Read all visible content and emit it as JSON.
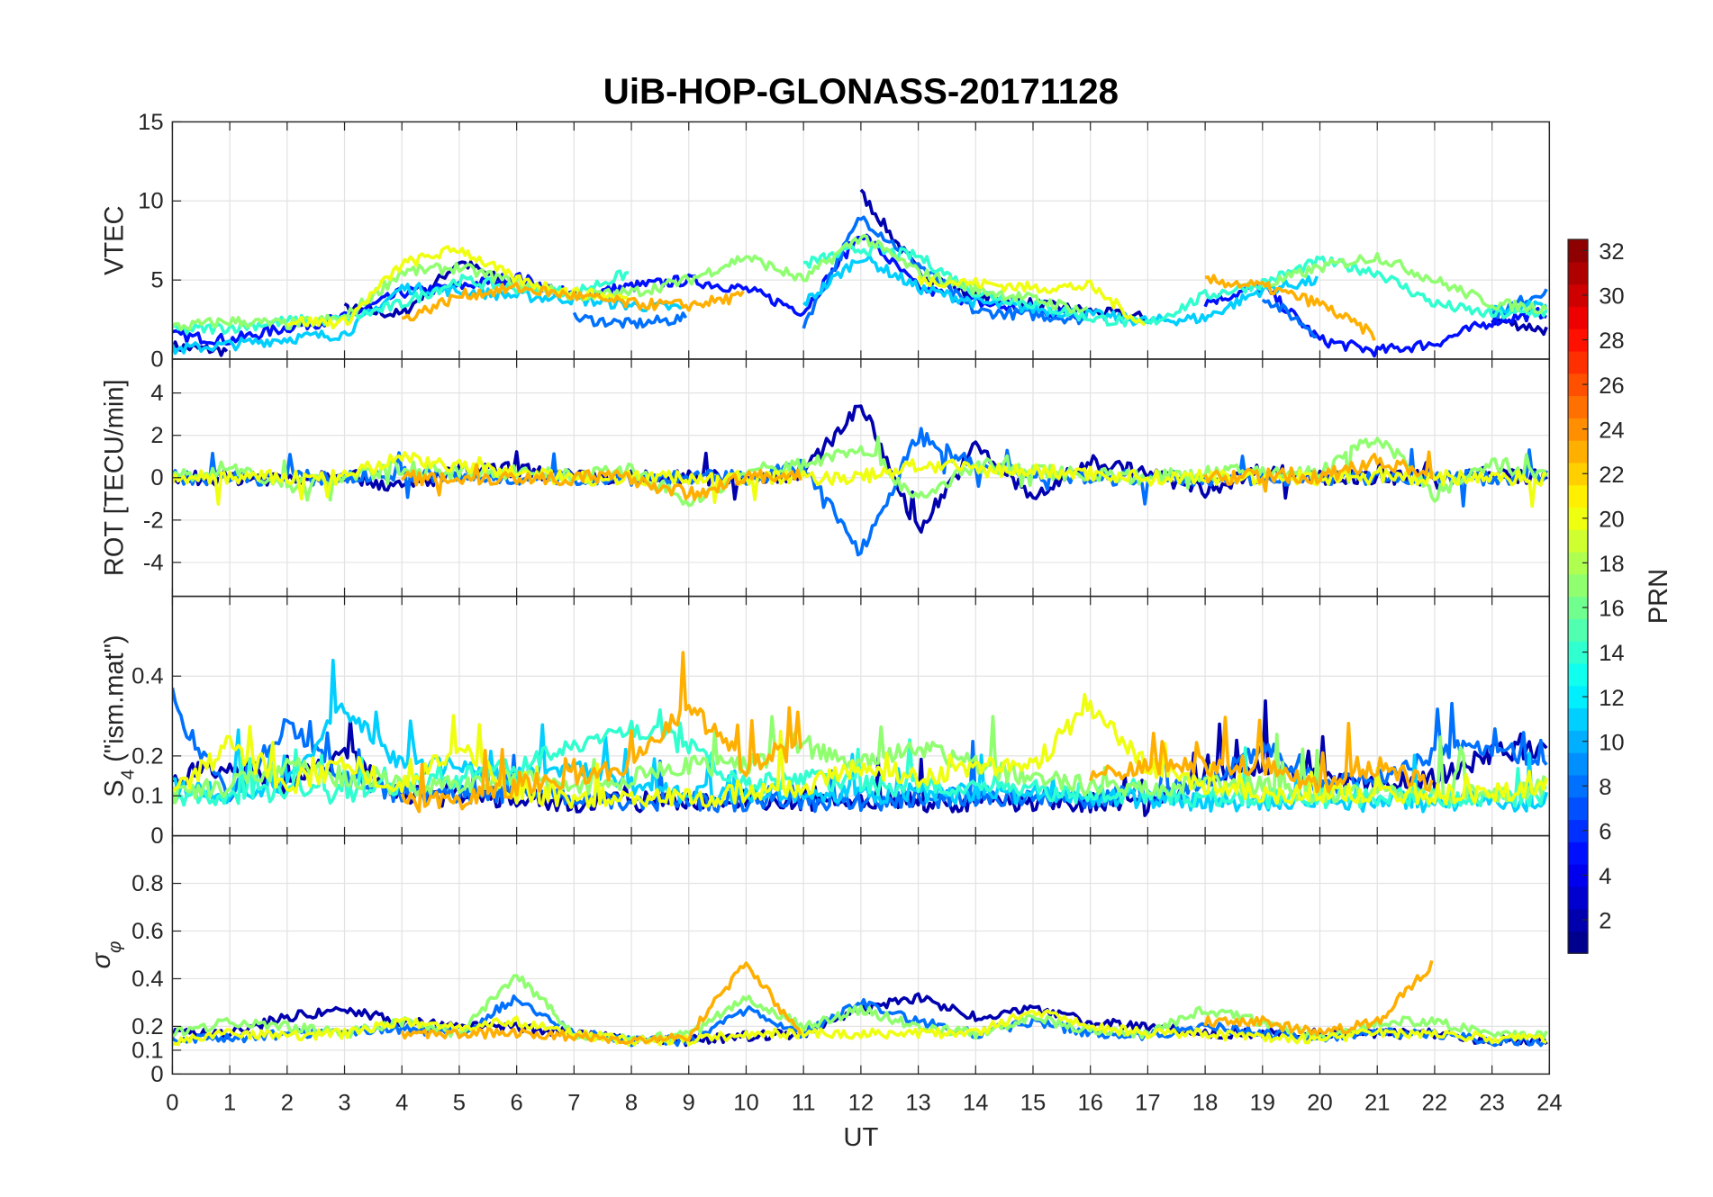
{
  "chart_data": {
    "type": "line",
    "title": "UiB-HOP-GLONASS-20171128",
    "xlabel": "UT",
    "xlim": [
      0,
      24
    ],
    "xticks": [
      0,
      1,
      2,
      3,
      4,
      5,
      6,
      7,
      8,
      9,
      10,
      11,
      12,
      13,
      14,
      15,
      16,
      17,
      18,
      19,
      20,
      21,
      22,
      23,
      24
    ],
    "x": [
      0,
      1,
      2,
      3,
      4,
      5,
      6,
      7,
      8,
      9,
      10,
      11,
      12,
      13,
      14,
      15,
      16,
      17,
      18,
      19,
      20,
      21,
      22,
      23,
      24
    ],
    "grid": true,
    "colorbar": {
      "label": "PRN",
      "range": [
        0.5,
        32.5
      ],
      "levels": 32,
      "colormap": "jet",
      "ticks": [
        2,
        4,
        6,
        8,
        10,
        12,
        14,
        16,
        18,
        20,
        22,
        24,
        26,
        28,
        30,
        32
      ]
    },
    "panels": [
      {
        "name": "vtec",
        "ylabel": "VTEC",
        "ylim": [
          0,
          15
        ],
        "yticks": [
          0,
          5,
          10,
          15
        ],
        "noise": 0.35,
        "series": [
          {
            "prn": 2,
            "values": [
              0.8,
              0.5,
              null,
              3.2,
              2.8,
              6.2,
              4.5,
              null,
              null,
              null,
              null,
              null,
              10.5,
              5.5,
              4.0,
              3.5,
              3.0,
              2.6,
              null,
              null,
              null,
              null,
              null,
              2.5,
              1.8
            ]
          },
          {
            "prn": 5,
            "values": [
              1.5,
              1.2,
              2.0,
              2.6,
              4.2,
              4.6,
              5.2,
              4.0,
              4.6,
              5.0,
              4.4,
              3.0,
              8.0,
              4.5,
              3.6,
              3.0,
              2.8,
              null,
              3.6,
              4.6,
              1.2,
              0.5,
              1.0,
              2.4,
              3.0
            ]
          },
          {
            "prn": 8,
            "values": [
              null,
              null,
              null,
              null,
              null,
              null,
              null,
              2.6,
              2.2,
              2.6,
              null,
              2.2,
              9.0,
              6.0,
              3.0,
              2.8,
              2.5,
              null,
              null,
              4.0,
              1.5,
              null,
              null,
              2.8,
              4.5
            ]
          },
          {
            "prn": 11,
            "values": [
              0.6,
              0.9,
              1.3,
              1.6,
              4.5,
              4.3,
              4.0,
              3.8,
              3.4,
              3.2,
              null,
              3.5,
              6.5,
              4.5,
              3.6,
              3.2,
              2.8,
              2.4,
              2.6,
              4.4,
              5.0,
              null,
              null,
              3.0,
              3.5
            ]
          },
          {
            "prn": 14,
            "values": [
              1.8,
              2.0,
              2.4,
              2.5,
              3.5,
              5.0,
              4.5,
              4.2,
              5.5,
              null,
              null,
              6.0,
              7.0,
              6.5,
              4.2,
              3.5,
              2.6,
              2.2,
              4.0,
              4.8,
              6.2,
              5.5,
              3.5,
              2.8,
              3.0
            ]
          },
          {
            "prn": 17,
            "values": [
              2.0,
              2.4,
              2.2,
              2.6,
              5.5,
              5.8,
              4.8,
              4.0,
              4.2,
              5.0,
              6.5,
              5.0,
              7.8,
              5.5,
              4.4,
              3.8,
              3.0,
              null,
              null,
              4.6,
              5.8,
              6.5,
              5.0,
              3.5,
              3.2
            ]
          },
          {
            "prn": 20,
            "values": [
              null,
              null,
              2.4,
              2.3,
              6.0,
              7.0,
              5.0,
              4.2,
              3.8,
              null,
              null,
              null,
              null,
              5.0,
              4.8,
              4.5,
              4.6,
              2.0,
              null,
              null,
              null,
              null,
              null,
              null,
              null
            ]
          },
          {
            "prn": 23,
            "values": [
              null,
              null,
              null,
              null,
              2.5,
              4.0,
              4.5,
              4.0,
              3.5,
              3.4,
              4.0,
              null,
              null,
              null,
              null,
              null,
              null,
              null,
              5.0,
              4.6,
              3.5,
              1.4,
              null,
              null,
              null
            ]
          }
        ]
      },
      {
        "name": "rot",
        "ylabel": "ROT [TECU/min]",
        "ylim": [
          -5.6,
          5.6
        ],
        "yticks": [
          -4,
          -2,
          0,
          2,
          4
        ],
        "noise": 0.35,
        "series": [
          {
            "prn": 2,
            "values": [
              0,
              0,
              0,
              0.2,
              -0.5,
              0.3,
              0.4,
              0,
              0,
              0,
              0,
              0.2,
              3.5,
              -2.5,
              1.5,
              -1.0,
              0.8,
              0.2,
              -0.6,
              0.4,
              0,
              0,
              0,
              0.2,
              0
            ]
          },
          {
            "prn": 8,
            "values": [
              0,
              0,
              0,
              0,
              0.2,
              0,
              0,
              0,
              0,
              0,
              0,
              0.5,
              -3.5,
              2.0,
              0.5,
              0.2,
              0,
              0,
              0,
              0,
              0,
              0,
              0,
              0,
              0
            ]
          },
          {
            "prn": 17,
            "values": [
              0,
              0.5,
              -0.4,
              0,
              0.5,
              0.2,
              0.3,
              0,
              0.4,
              -1.2,
              0.3,
              0.6,
              1.5,
              -1.0,
              0.6,
              0.3,
              0.2,
              0,
              0.2,
              0.3,
              0.2,
              2.0,
              -0.8,
              0.6,
              0
            ]
          },
          {
            "prn": 20,
            "values": [
              0,
              0,
              0,
              0,
              1.0,
              0.5,
              0.2,
              0,
              0,
              0,
              0,
              0,
              0,
              0.6,
              0.4,
              0.3,
              0.2,
              0,
              0,
              0,
              0,
              0,
              0,
              0,
              0
            ]
          },
          {
            "prn": 23,
            "values": [
              null,
              null,
              null,
              null,
              0,
              0,
              0,
              0,
              0,
              -0.8,
              0,
              0.1,
              null,
              null,
              null,
              null,
              null,
              null,
              0,
              0.1,
              0,
              0.8,
              0.2,
              null,
              null
            ]
          }
        ]
      },
      {
        "name": "s4",
        "ylabel": "S4 (\"ism.mat\")",
        "ylim": [
          0,
          0.6
        ],
        "yticks": [
          0,
          0.1,
          0.2,
          0.4
        ],
        "noise": 0.05,
        "series": [
          {
            "prn": 2,
            "values": [
              0.12,
              0.15,
              0.1,
              0.18,
              0.08,
              0.07,
              0.07,
              0.06,
              0.06,
              0.06,
              0.07,
              0.06,
              0.06,
              0.06,
              0.06,
              0.06,
              0.06,
              0.05,
              0.12,
              0.15,
              0.12,
              0.1,
              0.12,
              0.18,
              0.2
            ]
          },
          {
            "prn": 8,
            "values": [
              0.3,
              0.08,
              0.25,
              0.12,
              0.08,
              0.08,
              0.08,
              0.07,
              0.06,
              0.06,
              0.06,
              0.06,
              0.06,
              0.07,
              0.07,
              0.07,
              0.07,
              0.08,
              0.1,
              0.2,
              0.1,
              0.12,
              0.18,
              0.2,
              0.15
            ]
          },
          {
            "prn": 11,
            "values": [
              0.1,
              0.08,
              0.1,
              0.3,
              0.15,
              0.15,
              0.12,
              0.15,
              0.1,
              0.08,
              0.08,
              0.08,
              0.08,
              0.08,
              0.08,
              0.08,
              0.07,
              0.07,
              0.06,
              0.06,
              0.06,
              0.06,
              0.06,
              0.06,
              0.06
            ]
          },
          {
            "prn": 14,
            "values": [
              0.07,
              0.07,
              0.08,
              0.08,
              0.1,
              0.12,
              0.15,
              0.2,
              0.25,
              0.2,
              0.1,
              0.12,
              0.1,
              0.1,
              0.1,
              0.09,
              0.08,
              0.08,
              0.07,
              0.07,
              0.07,
              0.07,
              0.07,
              0.07,
              0.07
            ]
          },
          {
            "prn": 17,
            "values": [
              0.08,
              0.1,
              0.15,
              0.12,
              0.1,
              0.1,
              0.12,
              0.1,
              0.12,
              0.15,
              0.15,
              0.2,
              0.15,
              0.2,
              0.15,
              0.12,
              0.1,
              0.1,
              0.1,
              0.1,
              0.08,
              0.08,
              0.08,
              0.08,
              0.1
            ]
          },
          {
            "prn": 20,
            "values": [
              0.08,
              0.2,
              0.1,
              0.15,
              0.1,
              0.2,
              0.08,
              0.07,
              0.07,
              0.07,
              0.08,
              0.1,
              0.15,
              0.12,
              0.15,
              0.15,
              0.3,
              0.15,
              0.1,
              0.08,
              0.08,
              0.08,
              0.08,
              0.08,
              0.1
            ]
          },
          {
            "prn": 23,
            "values": [
              null,
              null,
              null,
              null,
              0.06,
              0.06,
              0.1,
              0.12,
              0.15,
              0.3,
              0.15,
              0.2,
              null,
              null,
              null,
              null,
              0.12,
              0.15,
              0.15,
              0.15,
              0.1,
              0.15,
              0.1,
              null,
              null
            ]
          }
        ]
      },
      {
        "name": "sigma_phi",
        "ylabel": "σφ",
        "ylim": [
          0,
          1
        ],
        "yticks": [
          0,
          0.1,
          0.2,
          0.4,
          0.6,
          0.8
        ],
        "noise": 0.04,
        "series": [
          {
            "prn": 2,
            "values": [
              0.15,
              0.15,
              0.22,
              0.25,
              0.2,
              0.18,
              0.18,
              0.15,
              0.12,
              0.12,
              0.14,
              0.15,
              0.25,
              0.3,
              0.22,
              0.25,
              0.2,
              0.18,
              0.15,
              0.15,
              0.15,
              0.15,
              0.15,
              0.12,
              0.12
            ]
          },
          {
            "prn": 8,
            "values": [
              0.13,
              0.13,
              0.15,
              0.15,
              0.17,
              0.15,
              0.3,
              0.15,
              0.12,
              0.12,
              0.25,
              0.15,
              0.28,
              0.2,
              0.15,
              0.2,
              0.15,
              0.14,
              0.18,
              0.15,
              0.13,
              0.15,
              0.15,
              0.12,
              0.12
            ]
          },
          {
            "prn": 17,
            "values": [
              0.15,
              0.2,
              0.18,
              0.15,
              0.2,
              0.15,
              0.4,
              0.15,
              0.13,
              0.14,
              0.3,
              0.18,
              0.25,
              0.18,
              0.15,
              0.22,
              0.16,
              0.15,
              0.25,
              0.2,
              0.13,
              0.2,
              0.2,
              0.15,
              0.15
            ]
          },
          {
            "prn": 20,
            "values": [
              0.12,
              0.15,
              0.14,
              0.15,
              0.2,
              0.18,
              0.2,
              0.15,
              0.12,
              0.12,
              0.15,
              0.15,
              0.15,
              0.15,
              0.15,
              0.25,
              0.18,
              0.15,
              0.15,
              0.13,
              0.13,
              0.15,
              0.15,
              0.13,
              0.13
            ]
          },
          {
            "prn": 23,
            "values": [
              null,
              null,
              null,
              null,
              0.15,
              0.15,
              0.15,
              0.14,
              0.12,
              0.14,
              0.45,
              0.12,
              null,
              null,
              null,
              null,
              null,
              null,
              0.2,
              0.2,
              0.15,
              0.2,
              0.45,
              null,
              null
            ]
          }
        ]
      }
    ]
  }
}
